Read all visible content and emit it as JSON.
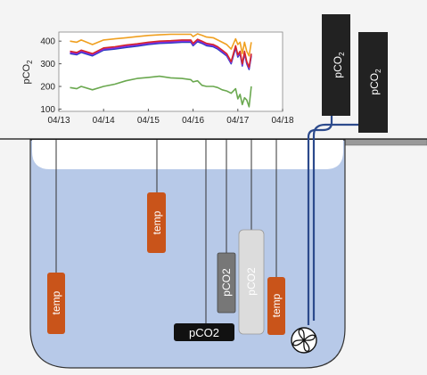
{
  "figure": {
    "sensor_labels": {
      "temp_left": "temp",
      "temp_mid": "temp",
      "temp_right": "temp",
      "pco2_gray": "pCO2",
      "pco2_light": "pCO2",
      "pco2_black": "pCO2",
      "pco2_top_a_base": "pCO",
      "pco2_top_a_sub": "2",
      "pco2_top_b_base": "pCO",
      "pco2_top_b_sub": "2"
    },
    "icons": {
      "fan": "fan-icon"
    },
    "colors": {
      "water": "#b7c9e8",
      "temp_sensor": "#c9541a",
      "pco2_dark": "#222222",
      "pco2_gray": "#777777",
      "pco2_light": "#dcdcdc",
      "tube": "#2c4a8c"
    }
  },
  "chart_data": {
    "type": "line",
    "ylabel_base": "pCO",
    "ylabel_sub": "2",
    "ylim": [
      90,
      440
    ],
    "yticks": [
      100,
      200,
      300,
      400
    ],
    "xticks": [
      "04/13",
      "04/14",
      "04/15",
      "04/16",
      "04/17",
      "04/18"
    ],
    "xlim": [
      0,
      5
    ],
    "grid": false,
    "series": [
      {
        "color": "#f0a020",
        "x": [
          0.25,
          0.4,
          0.5,
          0.75,
          1.0,
          1.25,
          1.5,
          1.75,
          2.0,
          2.25,
          2.5,
          2.75,
          2.95,
          3.0,
          3.1,
          3.2,
          3.3,
          3.45,
          3.55,
          3.65,
          3.75,
          3.85,
          3.95,
          4.0,
          4.05,
          4.1,
          4.15,
          4.2,
          4.25,
          4.3
        ],
        "values": [
          400,
          395,
          405,
          385,
          405,
          410,
          415,
          420,
          425,
          428,
          430,
          430,
          430,
          420,
          432,
          426,
          418,
          415,
          405,
          395,
          385,
          365,
          410,
          385,
          395,
          345,
          395,
          355,
          335,
          395
        ]
      },
      {
        "color": "#2a3fbf",
        "x": [
          0.25,
          0.4,
          0.5,
          0.75,
          1.0,
          1.25,
          1.5,
          1.75,
          2.0,
          2.25,
          2.5,
          2.75,
          2.95,
          3.0,
          3.1,
          3.2,
          3.3,
          3.45,
          3.55,
          3.65,
          3.75,
          3.85,
          3.95,
          4.0,
          4.05,
          4.1,
          4.15,
          4.2,
          4.25,
          4.3
        ],
        "values": [
          345,
          340,
          350,
          335,
          360,
          365,
          372,
          378,
          385,
          390,
          392,
          395,
          395,
          380,
          398,
          390,
          380,
          375,
          365,
          350,
          335,
          300,
          370,
          330,
          345,
          290,
          345,
          300,
          275,
          335
        ]
      },
      {
        "color": "#8a2be2",
        "x": [
          0.25,
          0.4,
          0.5,
          0.75,
          1.0,
          1.25,
          1.5,
          1.75,
          2.0,
          2.25,
          2.5,
          2.75,
          2.95,
          3.0,
          3.1,
          3.2,
          3.3,
          3.45,
          3.55,
          3.65,
          3.75,
          3.85,
          3.95,
          4.0,
          4.05,
          4.1,
          4.15,
          4.2,
          4.25,
          4.3
        ],
        "values": [
          350,
          345,
          355,
          340,
          365,
          370,
          378,
          383,
          390,
          395,
          397,
          400,
          400,
          385,
          403,
          395,
          385,
          380,
          370,
          355,
          340,
          305,
          375,
          335,
          350,
          295,
          350,
          305,
          280,
          340
        ]
      },
      {
        "color": "#d62728",
        "x": [
          0.25,
          0.4,
          0.5,
          0.75,
          1.0,
          1.25,
          1.5,
          1.75,
          2.0,
          2.25,
          2.5,
          2.75,
          2.95,
          3.0,
          3.1,
          3.2,
          3.3,
          3.45,
          3.55,
          3.65,
          3.75,
          3.85,
          3.95,
          4.0,
          4.05,
          4.1,
          4.15,
          4.2,
          4.25,
          4.3
        ],
        "values": [
          355,
          350,
          360,
          345,
          370,
          375,
          383,
          388,
          395,
          400,
          402,
          405,
          405,
          390,
          408,
          400,
          390,
          385,
          375,
          360,
          345,
          310,
          380,
          340,
          355,
          300,
          355,
          310,
          285,
          345
        ]
      },
      {
        "color": "#6aa84f",
        "x": [
          0.25,
          0.4,
          0.5,
          0.75,
          1.0,
          1.25,
          1.5,
          1.75,
          2.0,
          2.25,
          2.5,
          2.75,
          2.95,
          3.0,
          3.1,
          3.2,
          3.3,
          3.45,
          3.55,
          3.65,
          3.75,
          3.85,
          3.95,
          4.0,
          4.05,
          4.1,
          4.15,
          4.2,
          4.25,
          4.3
        ],
        "values": [
          195,
          190,
          200,
          185,
          200,
          210,
          225,
          235,
          240,
          245,
          238,
          235,
          230,
          220,
          225,
          205,
          200,
          200,
          195,
          185,
          180,
          170,
          190,
          145,
          165,
          120,
          150,
          140,
          110,
          200
        ]
      }
    ]
  }
}
